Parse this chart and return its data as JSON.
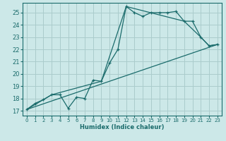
{
  "bg_color": "#cce8e8",
  "grid_color": "#aacccc",
  "line_color": "#1a6b6b",
  "xlabel": "Humidex (Indice chaleur)",
  "xlim": [
    -0.5,
    23.5
  ],
  "ylim": [
    16.6,
    25.8
  ],
  "yticks": [
    17,
    18,
    19,
    20,
    21,
    22,
    23,
    24,
    25
  ],
  "xticks": [
    0,
    1,
    2,
    3,
    4,
    5,
    6,
    7,
    8,
    9,
    10,
    11,
    12,
    13,
    14,
    15,
    16,
    17,
    18,
    19,
    20,
    21,
    22,
    23
  ],
  "line1_x": [
    0,
    1,
    2,
    3,
    4,
    5,
    6,
    7,
    8,
    9,
    10,
    11,
    12,
    13,
    14,
    15,
    16,
    17,
    18,
    19,
    20,
    21,
    22,
    23
  ],
  "line1_y": [
    17.1,
    17.6,
    17.9,
    18.3,
    18.3,
    17.2,
    18.1,
    18.0,
    19.5,
    19.4,
    20.9,
    22.0,
    25.5,
    25.0,
    24.7,
    25.0,
    25.0,
    25.0,
    25.1,
    24.3,
    24.3,
    23.0,
    22.3,
    22.4
  ],
  "line2_x": [
    0,
    3,
    9,
    12,
    19,
    21,
    22,
    23
  ],
  "line2_y": [
    17.1,
    18.3,
    19.4,
    25.5,
    24.3,
    23.0,
    22.3,
    22.4
  ],
  "line3_x": [
    0,
    23
  ],
  "line3_y": [
    17.1,
    22.4
  ]
}
